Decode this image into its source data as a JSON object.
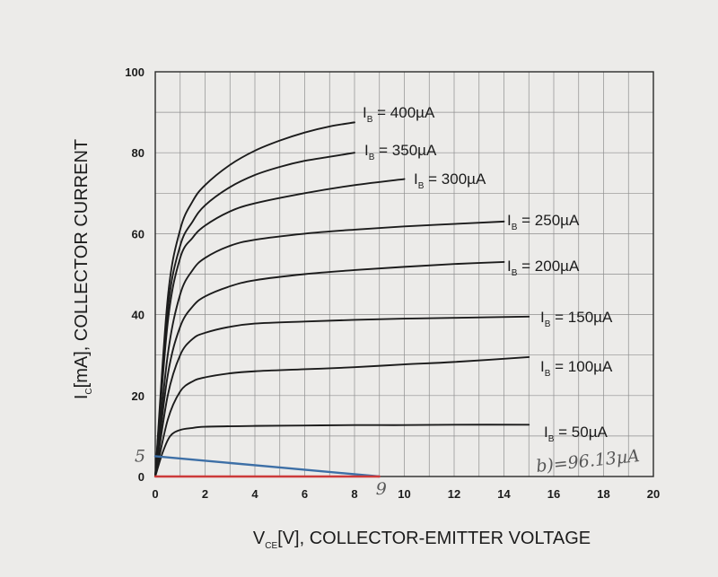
{
  "chart_data": {
    "type": "line",
    "xlabel": {
      "main": "V",
      "sub": "CE",
      "rest": "[V], COLLECTOR-EMITTER VOLTAGE"
    },
    "ylabel": {
      "main": "I",
      "sub": "C",
      "rest": "[mA], COLLECTOR CURRENT"
    },
    "xlim": [
      0,
      20
    ],
    "ylim": [
      0,
      100
    ],
    "x_ticks": [
      0,
      2,
      4,
      6,
      8,
      10,
      12,
      14,
      16,
      18,
      20
    ],
    "y_ticks": [
      0,
      20,
      40,
      60,
      80,
      100
    ],
    "grid": true,
    "series": [
      {
        "name": "I_B = 400µA",
        "label": {
          "main": "I",
          "sub": "B",
          "rest": " = 400µA"
        },
        "color": "#1c1c1c",
        "x": [
          0,
          0.5,
          1,
          1.5,
          2,
          3,
          4,
          5,
          6,
          7,
          8
        ],
        "y": [
          0,
          44,
          61,
          68,
          72,
          77,
          80.5,
          83,
          85,
          86.5,
          87.5
        ]
      },
      {
        "name": "I_B = 350µA",
        "label": {
          "main": "I",
          "sub": "B",
          "rest": " = 350µA"
        },
        "color": "#1c1c1c",
        "x": [
          0,
          0.5,
          1,
          1.5,
          2,
          3,
          4,
          5,
          6,
          7,
          8
        ],
        "y": [
          0,
          41,
          57,
          63,
          67,
          71.5,
          74.5,
          76.5,
          78,
          79,
          80
        ]
      },
      {
        "name": "I_B = 300µA",
        "label": {
          "main": "I",
          "sub": "B",
          "rest": " = 300µA"
        },
        "color": "#1c1c1c",
        "x": [
          0,
          0.5,
          1,
          1.5,
          2,
          3,
          4,
          6,
          8,
          10
        ],
        "y": [
          0,
          38,
          54,
          59,
          62,
          65.5,
          67.5,
          70,
          72,
          73.5
        ]
      },
      {
        "name": "I_B = 250µA",
        "label": {
          "main": "I",
          "sub": "B",
          "rest": " = 250µA"
        },
        "color": "#1c1c1c",
        "x": [
          0,
          0.5,
          1,
          1.5,
          2,
          3,
          4,
          6,
          8,
          10,
          12,
          14
        ],
        "y": [
          0,
          30,
          45,
          51,
          54,
          57,
          58.5,
          60,
          61,
          61.8,
          62.4,
          63
        ]
      },
      {
        "name": "I_B = 200µA",
        "label": {
          "main": "I",
          "sub": "B",
          "rest": " = 200µA"
        },
        "color": "#1c1c1c",
        "x": [
          0,
          0.5,
          1,
          1.5,
          2,
          3,
          4,
          6,
          8,
          10,
          12,
          14
        ],
        "y": [
          0,
          25,
          37,
          42,
          44.5,
          47,
          48.5,
          50,
          51,
          51.8,
          52.5,
          53
        ]
      },
      {
        "name": "I_B = 150µA",
        "label": {
          "main": "I",
          "sub": "B",
          "rest": " = 150µA"
        },
        "color": "#1c1c1c",
        "x": [
          0,
          0.5,
          1,
          1.5,
          2,
          3,
          4,
          6,
          8,
          10,
          12,
          15
        ],
        "y": [
          0,
          20,
          30,
          34,
          35.5,
          37,
          37.8,
          38.3,
          38.7,
          39,
          39.2,
          39.5
        ]
      },
      {
        "name": "I_B = 100µA",
        "label": {
          "main": "I",
          "sub": "B",
          "rest": " = 100µA"
        },
        "color": "#1c1c1c",
        "x": [
          0,
          0.5,
          1,
          1.5,
          2,
          3,
          4,
          6,
          8,
          10,
          12,
          15
        ],
        "y": [
          0,
          14,
          21,
          23.5,
          24.5,
          25.5,
          26,
          26.5,
          27,
          27.7,
          28.3,
          29.5
        ]
      },
      {
        "name": "I_B = 50µA",
        "label": {
          "main": "I",
          "sub": "B",
          "rest": " = 50µA"
        },
        "color": "#1c1c1c",
        "x": [
          0,
          0.3,
          0.6,
          1,
          1.5,
          2,
          4,
          6,
          8,
          10,
          12,
          15
        ],
        "y": [
          0,
          6,
          10,
          11.5,
          12,
          12.3,
          12.5,
          12.6,
          12.7,
          12.7,
          12.8,
          12.8
        ]
      },
      {
        "name": "load-line",
        "color": "#3d6fa6",
        "x": [
          0,
          9
        ],
        "y": [
          5,
          0
        ]
      },
      {
        "name": "baseline",
        "color": "#cc3a3a",
        "x": [
          0,
          9
        ],
        "y": [
          0,
          0
        ]
      }
    ],
    "annotations": {
      "y_mark": "5",
      "x_mark": "9",
      "note": "b)=96.13µA"
    }
  }
}
